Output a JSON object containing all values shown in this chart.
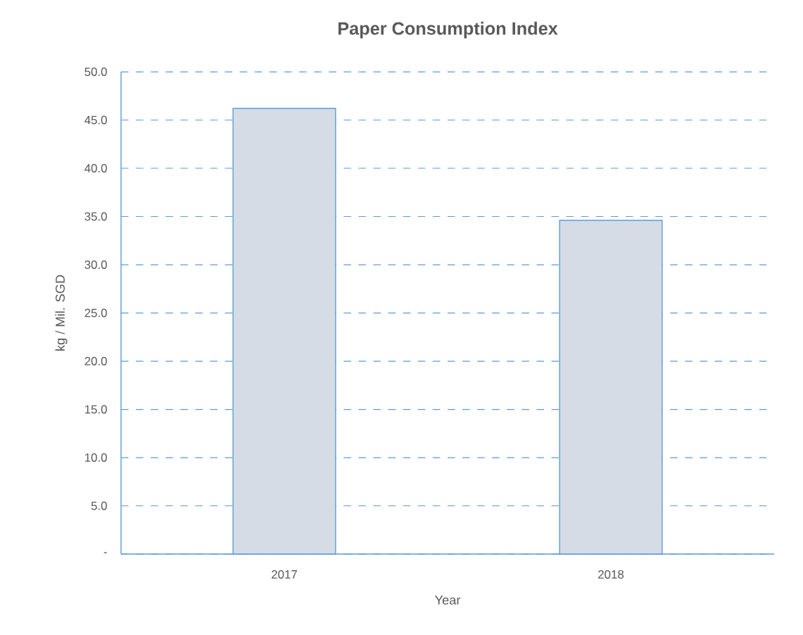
{
  "chart_data": {
    "type": "bar",
    "title": "Paper Consumption Index",
    "xlabel": "Year",
    "ylabel": "kg / Mil. SGD",
    "categories": [
      "2017",
      "2018"
    ],
    "values": [
      46.2,
      34.6
    ],
    "color": "#d6dce5",
    "ylim": [
      0,
      50
    ],
    "yticks": [
      {
        "value": 0,
        "label": "-"
      },
      {
        "value": 5,
        "label": "5.0"
      },
      {
        "value": 10,
        "label": "10.0"
      },
      {
        "value": 15,
        "label": "15.0"
      },
      {
        "value": 20,
        "label": "20.0"
      },
      {
        "value": 25,
        "label": "25.0"
      },
      {
        "value": 30,
        "label": "30.0"
      },
      {
        "value": 35,
        "label": "35.0"
      },
      {
        "value": 40,
        "label": "40.0"
      },
      {
        "value": 45,
        "label": "45.0"
      },
      {
        "value": 50,
        "label": "50.0"
      }
    ],
    "grid": "y"
  }
}
